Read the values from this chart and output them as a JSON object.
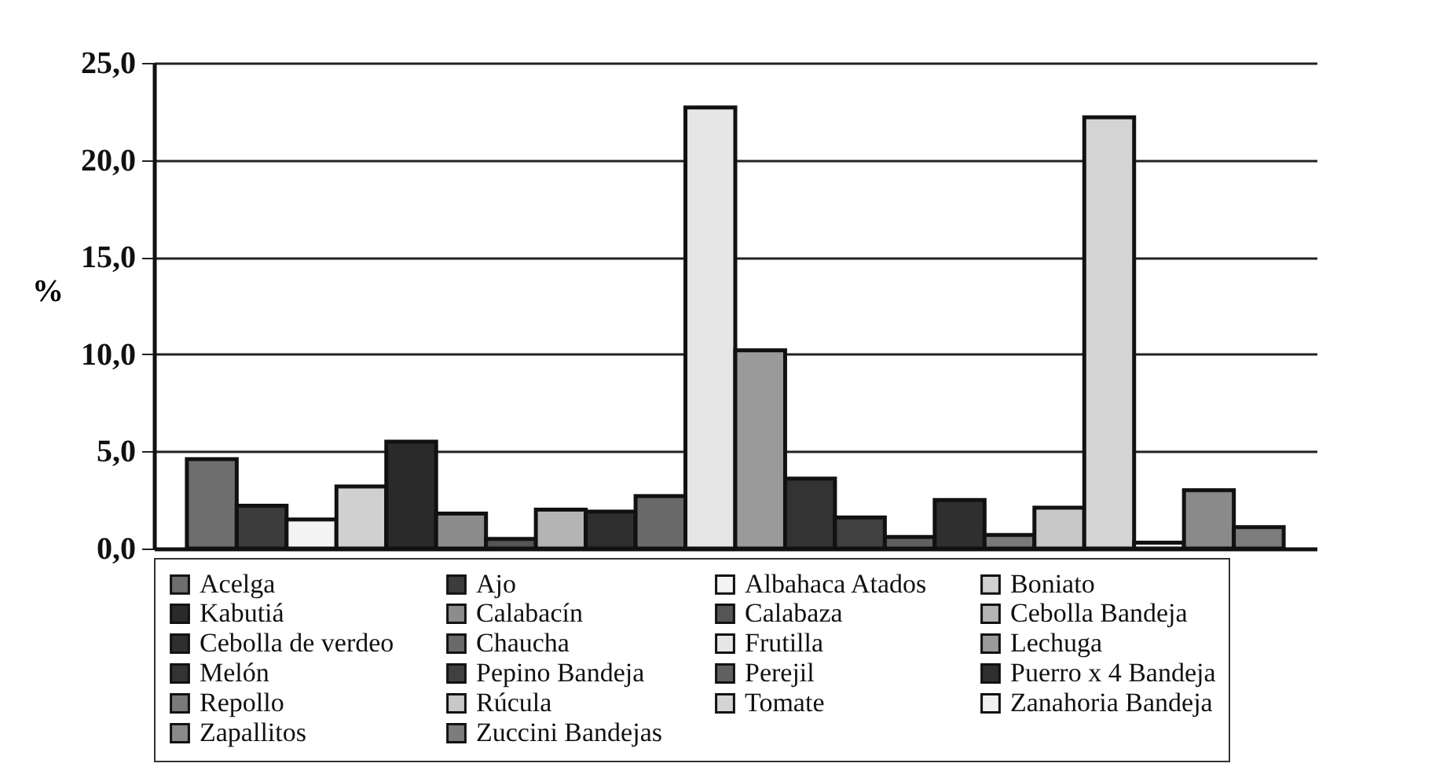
{
  "chart_data": {
    "type": "bar",
    "ylabel": "%",
    "categories": [
      null
    ],
    "series": [
      {
        "name": "Acelga",
        "color": "#6e6e6e",
        "values": [
          4.6
        ]
      },
      {
        "name": "Ajo",
        "color": "#3c3c3c",
        "values": [
          2.2
        ]
      },
      {
        "name": "Albahaca Atados",
        "color": "#f4f4f4",
        "values": [
          1.5
        ]
      },
      {
        "name": "Boniato",
        "color": "#d0d0d0",
        "values": [
          3.2
        ]
      },
      {
        "name": "Kabutiá",
        "color": "#2a2a2a",
        "values": [
          5.5
        ]
      },
      {
        "name": "Calabacín",
        "color": "#8c8c8c",
        "values": [
          1.8
        ]
      },
      {
        "name": "Calabaza",
        "color": "#555555",
        "values": [
          0.5
        ]
      },
      {
        "name": "Cebolla Bandeja",
        "color": "#b4b4b4",
        "values": [
          2.0
        ]
      },
      {
        "name": "Cebolla de verdeo",
        "color": "#2e2e2e",
        "values": [
          1.9
        ]
      },
      {
        "name": "Chaucha",
        "color": "#6a6a6a",
        "values": [
          2.7
        ]
      },
      {
        "name": "Frutilla",
        "color": "#e6e6e6",
        "values": [
          22.7
        ]
      },
      {
        "name": "Lechuga",
        "color": "#9a9a9a",
        "values": [
          10.2
        ]
      },
      {
        "name": "Melón",
        "color": "#333333",
        "values": [
          3.6
        ]
      },
      {
        "name": "Pepino Bandeja",
        "color": "#404040",
        "values": [
          1.6
        ]
      },
      {
        "name": "Perejil",
        "color": "#606060",
        "values": [
          0.6
        ]
      },
      {
        "name": "Puerro x 4 Bandeja",
        "color": "#2f2f2f",
        "values": [
          2.5
        ]
      },
      {
        "name": "Repollo",
        "color": "#7a7a7a",
        "values": [
          0.7
        ]
      },
      {
        "name": "Rúcula",
        "color": "#c8c8c8",
        "values": [
          2.1
        ]
      },
      {
        "name": "Tomate",
        "color": "#d4d4d4",
        "values": [
          22.2
        ]
      },
      {
        "name": "Zanahoria Bandeja",
        "color": "#f0f0f0",
        "values": [
          0.3
        ]
      },
      {
        "name": "Zapallitos",
        "color": "#8a8a8a",
        "values": [
          3.0
        ]
      },
      {
        "name": "Zuccini Bandejas",
        "color": "#7c7c7c",
        "values": [
          1.1
        ]
      }
    ],
    "ylim": [
      0,
      25
    ],
    "yticks": [
      {
        "value": 0,
        "label": "0,0"
      },
      {
        "value": 5,
        "label": "5,0"
      },
      {
        "value": 10,
        "label": "10,0"
      },
      {
        "value": 15,
        "label": "15,0"
      },
      {
        "value": 20,
        "label": "20,0"
      },
      {
        "value": 25,
        "label": "25,0"
      }
    ],
    "grid": "y",
    "legend": "bottom",
    "tick_labels": "y"
  }
}
